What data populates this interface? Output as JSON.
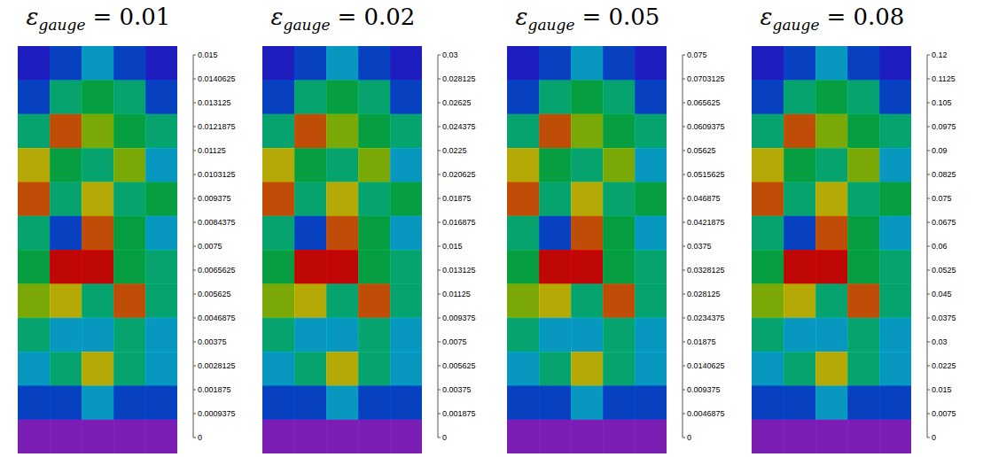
{
  "chart_data": [
    {
      "type": "heatmap",
      "title": {
        "symbol": "ε",
        "subscript": "gauge",
        "text": "= 0.01"
      },
      "tick_labels": false,
      "cells": [
        [
          0.003,
          0.0045,
          0.006,
          0.0045,
          0.003
        ],
        [
          0.0045,
          0.0075,
          0.009,
          0.0075,
          0.0045
        ],
        [
          0.0075,
          0.0135,
          0.0105,
          0.009,
          0.0075
        ],
        [
          0.012,
          0.009,
          0.0075,
          0.0105,
          0.006
        ],
        [
          0.0135,
          0.0075,
          0.012,
          0.0075,
          0.009
        ],
        [
          0.0075,
          0.0045,
          0.0135,
          0.009,
          0.006
        ],
        [
          0.009,
          0.015,
          0.015,
          0.009,
          0.0075
        ],
        [
          0.0105,
          0.012,
          0.0075,
          0.0135,
          0.0075
        ],
        [
          0.0075,
          0.006,
          0.006,
          0.0075,
          0.006
        ],
        [
          0.006,
          0.0075,
          0.012,
          0.0075,
          0.006
        ],
        [
          0.0045,
          0.0045,
          0.006,
          0.0045,
          0.0045
        ],
        [
          0.0015,
          0.0015,
          0.0015,
          0.0015,
          0.0015
        ]
      ],
      "colorbar": {
        "range": [
          0,
          0.015
        ],
        "ticks": [
          0,
          0.0009375,
          0.001875,
          0.0028125,
          0.00375,
          0.0046875,
          0.005625,
          0.0065625,
          0.0075,
          0.0084375,
          0.009375,
          0.0103125,
          0.01125,
          0.0121875,
          0.013125,
          0.0140625,
          0.015
        ]
      }
    },
    {
      "type": "heatmap",
      "title": {
        "symbol": "ε",
        "subscript": "gauge",
        "text": "= 0.02"
      },
      "tick_labels": false,
      "cells": [
        [
          0.006,
          0.009,
          0.012,
          0.009,
          0.006
        ],
        [
          0.009,
          0.015,
          0.018,
          0.015,
          0.009
        ],
        [
          0.015,
          0.027,
          0.021,
          0.018,
          0.015
        ],
        [
          0.024,
          0.018,
          0.015,
          0.021,
          0.012
        ],
        [
          0.027,
          0.015,
          0.024,
          0.015,
          0.018
        ],
        [
          0.015,
          0.009,
          0.027,
          0.018,
          0.012
        ],
        [
          0.018,
          0.03,
          0.03,
          0.018,
          0.015
        ],
        [
          0.021,
          0.024,
          0.015,
          0.027,
          0.015
        ],
        [
          0.015,
          0.012,
          0.012,
          0.015,
          0.012
        ],
        [
          0.012,
          0.015,
          0.024,
          0.015,
          0.012
        ],
        [
          0.009,
          0.009,
          0.012,
          0.009,
          0.009
        ],
        [
          0.003,
          0.003,
          0.003,
          0.003,
          0.003
        ]
      ],
      "colorbar": {
        "range": [
          0,
          0.03
        ],
        "ticks": [
          0,
          0.001875,
          0.00375,
          0.005625,
          0.0075,
          0.009375,
          0.01125,
          0.013125,
          0.015,
          0.016875,
          0.01875,
          0.020625,
          0.0225,
          0.024375,
          0.02625,
          0.028125,
          0.03
        ]
      }
    },
    {
      "type": "heatmap",
      "title": {
        "symbol": "ε",
        "subscript": "gauge",
        "text": "= 0.05"
      },
      "tick_labels": false,
      "cells": [
        [
          0.015,
          0.0225,
          0.03,
          0.0225,
          0.015
        ],
        [
          0.0225,
          0.0375,
          0.045,
          0.0375,
          0.0225
        ],
        [
          0.0375,
          0.0675,
          0.0525,
          0.045,
          0.0375
        ],
        [
          0.06,
          0.045,
          0.0375,
          0.0525,
          0.03
        ],
        [
          0.0675,
          0.0375,
          0.06,
          0.0375,
          0.045
        ],
        [
          0.0375,
          0.0225,
          0.0675,
          0.045,
          0.03
        ],
        [
          0.045,
          0.075,
          0.075,
          0.045,
          0.0375
        ],
        [
          0.0525,
          0.06,
          0.0375,
          0.0675,
          0.0375
        ],
        [
          0.0375,
          0.03,
          0.03,
          0.0375,
          0.03
        ],
        [
          0.03,
          0.0375,
          0.06,
          0.0375,
          0.03
        ],
        [
          0.0225,
          0.0225,
          0.03,
          0.0225,
          0.0225
        ],
        [
          0.0075,
          0.0075,
          0.0075,
          0.0075,
          0.0075
        ]
      ],
      "colorbar": {
        "range": [
          0,
          0.075
        ],
        "ticks": [
          0,
          0.0046875,
          0.009375,
          0.0140625,
          0.01875,
          0.0234375,
          0.028125,
          0.0328125,
          0.0375,
          0.0421875,
          0.046875,
          0.0515625,
          0.05625,
          0.0609375,
          0.065625,
          0.0703125,
          0.075
        ]
      }
    },
    {
      "type": "heatmap",
      "title": {
        "symbol": "ε",
        "subscript": "gauge",
        "text": "= 0.08"
      },
      "tick_labels": false,
      "cells": [
        [
          0.024,
          0.036,
          0.048,
          0.036,
          0.024
        ],
        [
          0.036,
          0.06,
          0.072,
          0.06,
          0.036
        ],
        [
          0.06,
          0.108,
          0.084,
          0.072,
          0.06
        ],
        [
          0.096,
          0.072,
          0.06,
          0.084,
          0.048
        ],
        [
          0.108,
          0.06,
          0.096,
          0.06,
          0.072
        ],
        [
          0.06,
          0.036,
          0.108,
          0.072,
          0.048
        ],
        [
          0.072,
          0.12,
          0.12,
          0.072,
          0.06
        ],
        [
          0.084,
          0.096,
          0.06,
          0.108,
          0.06
        ],
        [
          0.06,
          0.048,
          0.048,
          0.06,
          0.048
        ],
        [
          0.048,
          0.06,
          0.096,
          0.06,
          0.048
        ],
        [
          0.036,
          0.036,
          0.048,
          0.036,
          0.036
        ],
        [
          0.012,
          0.012,
          0.012,
          0.012,
          0.012
        ]
      ],
      "colorbar": {
        "range": [
          0,
          0.12
        ],
        "ticks": [
          0,
          0.0075,
          0.015,
          0.0225,
          0.03,
          0.0375,
          0.045,
          0.0525,
          0.06,
          0.0675,
          0.075,
          0.0825,
          0.09,
          0.0975,
          0.105,
          0.1125,
          0.12
        ]
      }
    }
  ]
}
